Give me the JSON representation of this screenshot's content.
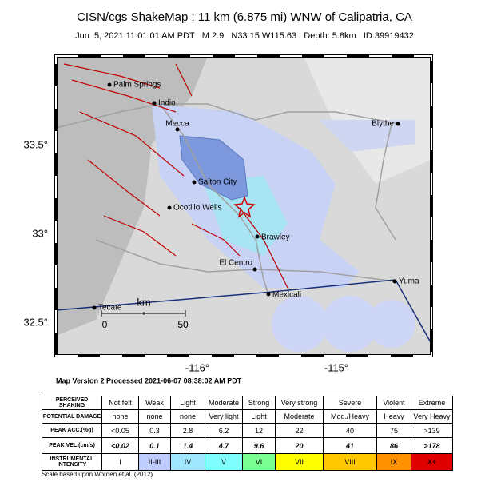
{
  "header": {
    "title": "CISN/cgs ShakeMap : 11 km (6.875 mi) WNW of Calipatria, CA",
    "subtitle": "Jun  5, 2021 11:01:01 AM PDT   M 2.9   N33.15 W115.63   Depth: 5.8km   ID:39919432"
  },
  "map": {
    "cities": [
      "Palm Springs",
      "Indio",
      "Mecca",
      "Blythe",
      "Salton City",
      "Ocotillo Wells",
      "Brawley",
      "El Centro",
      "Mexicali",
      "Yuma",
      "Tecate"
    ],
    "lat_labels": [
      "33.5°",
      "33°",
      "32.5°"
    ],
    "lon_labels": [
      "-116°",
      "-115°"
    ],
    "scale": {
      "unit": "km",
      "ticks": [
        "0",
        "50"
      ]
    }
  },
  "map_version": "Map Version 2 Processed 2021-06-07 08:38:02 AM PDT",
  "legend": {
    "rows": [
      [
        "PERCEIVED SHAKING",
        "Not felt",
        "Weak",
        "Light",
        "Moderate",
        "Strong",
        "Very strong",
        "Severe",
        "Violent",
        "Extreme"
      ],
      [
        "POTENTIAL DAMAGE",
        "none",
        "none",
        "none",
        "Very light",
        "Light",
        "Moderate",
        "Mod./Heavy",
        "Heavy",
        "Very Heavy"
      ],
      [
        "PEAK ACC.(%g)",
        "<0.05",
        "0.3",
        "2.8",
        "6.2",
        "12",
        "22",
        "40",
        "75",
        ">139"
      ],
      [
        "PEAK VEL.(cm/s)",
        "<0.02",
        "0.1",
        "1.4",
        "4.7",
        "9.6",
        "20",
        "41",
        "86",
        ">178"
      ],
      [
        "INSTRUMENTAL INTENSITY",
        "I",
        "II-III",
        "IV",
        "V",
        "VI",
        "VII",
        "VIII",
        "IX",
        "X+"
      ]
    ],
    "colors": [
      "#ffffff",
      "#bfccff",
      "#a0e6ff",
      "#80ffff",
      "#7aff93",
      "#ffff00",
      "#ffc800",
      "#ff9100",
      "#e00000"
    ],
    "footnote": "Scale based upon Worden et al. (2012)"
  }
}
